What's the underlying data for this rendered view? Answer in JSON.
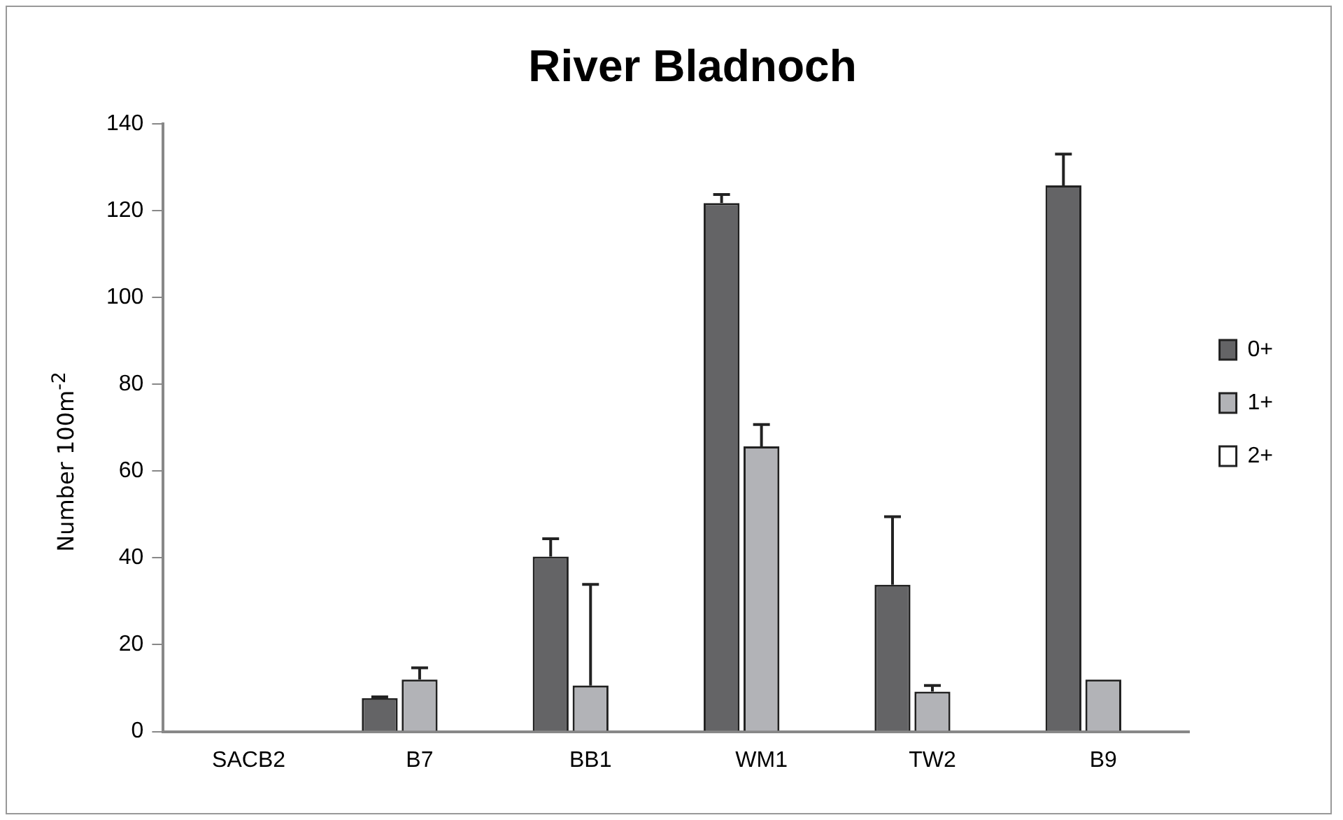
{
  "chart_data": {
    "type": "bar",
    "title": "River Bladnoch",
    "ylabel": "Number 100m$^{-2}$",
    "categories": [
      "SACB2",
      "B7",
      "BB1",
      "WM1",
      "TW2",
      "B9"
    ],
    "series": [
      {
        "name": "0+",
        "color": "#646466",
        "values": [
          0,
          7.7,
          40.3,
          121.7,
          33.8,
          125.8
        ],
        "errors": [
          null,
          [
            7.7,
            8
          ],
          [
            40.3,
            44.4
          ],
          [
            121.7,
            123.7
          ],
          [
            33.8,
            49.5
          ],
          [
            125.8,
            133
          ]
        ]
      },
      {
        "name": "1+",
        "color": "#b2b3b7",
        "values": [
          0,
          12,
          10.6,
          65.7,
          9.2,
          12
        ],
        "errors": [
          null,
          [
            12,
            14.7
          ],
          [
            10.6,
            33.9
          ],
          [
            65.7,
            70.7
          ],
          [
            9.2,
            10.6
          ],
          null
        ]
      },
      {
        "name": "2+",
        "color": "#ffffff",
        "values": [
          0,
          0,
          0,
          0,
          0,
          0
        ]
      }
    ],
    "ylim": [
      0,
      140
    ],
    "yticks": [
      0,
      20,
      40,
      60,
      80,
      100,
      120,
      140
    ],
    "grid": false,
    "legend": "right"
  }
}
